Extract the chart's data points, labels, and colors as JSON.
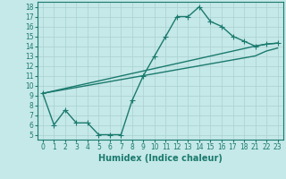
{
  "xlabel": "Humidex (Indice chaleur)",
  "bg_color": "#c5e8e8",
  "line_color": "#1a7a6e",
  "grid_color": "#aad0d0",
  "xlim": [
    -0.5,
    23.5
  ],
  "ylim": [
    4.5,
    18.5
  ],
  "xticks": [
    0,
    1,
    2,
    3,
    4,
    5,
    6,
    7,
    8,
    9,
    10,
    11,
    12,
    13,
    14,
    15,
    16,
    17,
    18,
    21,
    22,
    23
  ],
  "yticks": [
    5,
    6,
    7,
    8,
    9,
    10,
    11,
    12,
    13,
    14,
    15,
    16,
    17,
    18
  ],
  "line1_x": [
    0,
    1,
    2,
    3,
    4,
    5,
    6,
    7,
    8,
    9,
    10,
    11,
    12,
    13,
    14,
    15,
    16,
    17,
    18,
    21,
    22,
    23
  ],
  "line1_y": [
    9.2,
    6.0,
    7.5,
    6.2,
    6.2,
    5.0,
    5.0,
    5.0,
    8.5,
    11.0,
    13.0,
    15.0,
    17.0,
    17.0,
    18.0,
    16.5,
    16.0,
    15.0,
    14.5,
    14.0,
    14.2,
    14.3
  ],
  "line2_x": [
    0,
    21,
    22,
    23
  ],
  "line2_y": [
    9.2,
    14.0,
    14.2,
    14.3
  ],
  "line3_x": [
    0,
    21,
    22,
    23
  ],
  "line3_y": [
    9.2,
    13.0,
    13.5,
    13.8
  ],
  "linewidth": 1.0,
  "marker_size": 3
}
